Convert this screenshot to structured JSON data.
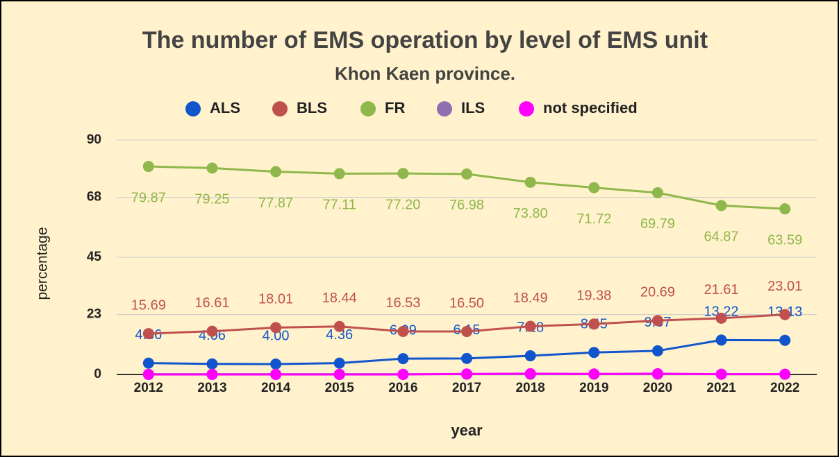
{
  "chart_data": {
    "type": "line",
    "title": "The number of EMS operation by level of EMS unit",
    "subtitle": "Khon Kaen province.",
    "x_label": "year",
    "y_label": "percentage",
    "categories": [
      "2012",
      "2013",
      "2014",
      "2015",
      "2016",
      "2017",
      "2018",
      "2019",
      "2020",
      "2021",
      "2022"
    ],
    "series": [
      {
        "name": "ALS",
        "color": "#1155cc",
        "values": [
          4.36,
          4.06,
          4.0,
          4.36,
          6.09,
          6.15,
          7.18,
          8.45,
          9.07,
          13.22,
          13.13
        ],
        "value_labels": [
          "4.36",
          "4.06",
          "4.00",
          "4.36",
          "6.09",
          "6.15",
          "7.18",
          "8.45",
          "9.07",
          "13.22",
          "13.13"
        ]
      },
      {
        "name": "BLS",
        "color": "#c0504d",
        "values": [
          15.69,
          16.61,
          18.01,
          18.44,
          16.53,
          16.5,
          18.49,
          19.38,
          20.69,
          21.61,
          23.01
        ],
        "value_labels": [
          "15.69",
          "16.61",
          "18.01",
          "18.44",
          "16.53",
          "16.50",
          "18.49",
          "19.38",
          "20.69",
          "21.61",
          "23.01"
        ]
      },
      {
        "name": "FR",
        "color": "#8fb74b",
        "values": [
          79.87,
          79.25,
          77.87,
          77.11,
          77.2,
          76.98,
          73.8,
          71.72,
          69.79,
          64.87,
          63.59
        ],
        "value_labels": [
          "79.87",
          "79.25",
          "77.87",
          "77.11",
          "77.20",
          "76.98",
          "73.80",
          "71.72",
          "69.79",
          "64.87",
          "63.59"
        ]
      },
      {
        "name": "ILS",
        "color": "#8e6fb0",
        "values": [
          0.1,
          0.1,
          0.1,
          0.1,
          0.1,
          0.1,
          0.1,
          0.1,
          0.1,
          0.1,
          0.1
        ]
      },
      {
        "name": "not specified",
        "color": "#ff00ff",
        "values": [
          0,
          0,
          0,
          0,
          0,
          0.2,
          0.3,
          0.2,
          0.3,
          0.1,
          0.1
        ]
      }
    ],
    "ylim": [
      0,
      90
    ],
    "yticks": [
      0,
      23,
      45,
      68,
      90
    ],
    "grid": true,
    "legend": "top"
  }
}
